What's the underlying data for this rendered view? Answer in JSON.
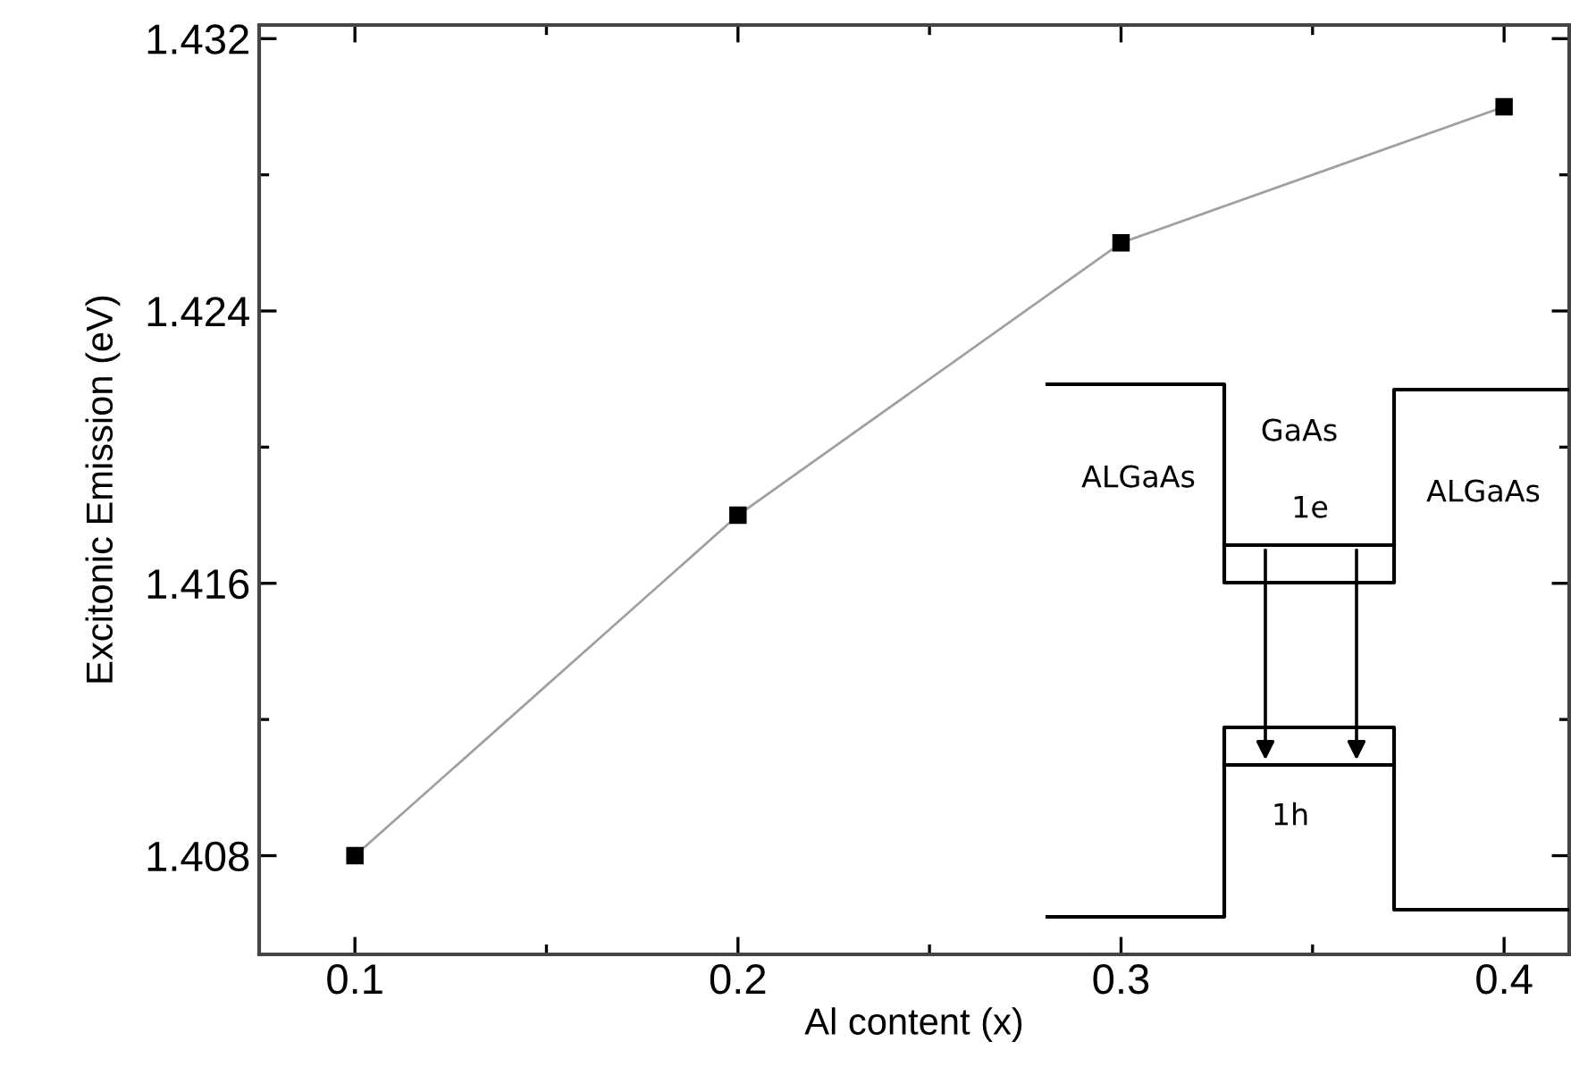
{
  "chart_data": {
    "type": "line",
    "xlabel": "Al content (x)",
    "ylabel": "Excitonic Emission (eV)",
    "x": [
      0.1,
      0.2,
      0.3,
      0.4
    ],
    "series": [
      {
        "color": "#a0a0a0",
        "values": [
          1.408,
          1.418,
          1.426,
          1.43
        ]
      }
    ],
    "marker": "square",
    "line_style": "solid",
    "xlim": [
      0.075,
      0.417
    ],
    "ylim": [
      1.4051,
      1.4324
    ],
    "xticks": [
      0.1,
      0.2,
      0.3,
      0.4
    ],
    "yticks": [
      1.408,
      1.416,
      1.424,
      1.432
    ],
    "grid": false,
    "legend": false,
    "annotations": [
      "ALGaAs",
      "GaAs",
      "1e",
      "ALGaAs",
      "1h"
    ]
  }
}
